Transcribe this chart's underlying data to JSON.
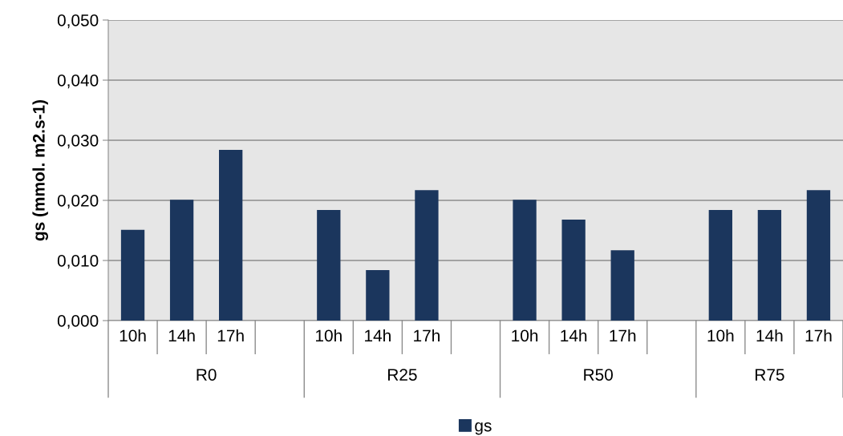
{
  "chart_data": {
    "type": "bar",
    "categories": [
      "10h",
      "14h",
      "17h",
      null,
      "10h",
      "14h",
      "17h",
      null,
      "10h",
      "14h",
      "17h",
      null,
      "10h",
      "14h",
      "17h"
    ],
    "series": [
      {
        "name": "gs",
        "color": "#1b365d",
        "values": [
          0.0151,
          0.0201,
          0.0284,
          null,
          0.0184,
          0.0084,
          0.0217,
          null,
          0.0201,
          0.0168,
          0.0117,
          null,
          0.0184,
          0.0184,
          0.0217
        ]
      }
    ],
    "ylabel": "gs (mmol. m2.s-1)",
    "ylim": [
      0,
      0.05
    ],
    "yticks": [
      {
        "value": 0,
        "label": "0,000"
      },
      {
        "value": 0.01,
        "label": "0,010"
      },
      {
        "value": 0.02,
        "label": "0,020"
      },
      {
        "value": 0.03,
        "label": "0,030"
      },
      {
        "value": 0.04,
        "label": "0,040"
      },
      {
        "value": 0.05,
        "label": "0,050"
      }
    ],
    "annotations": [
      "R0",
      "R25",
      "R50",
      "R75"
    ],
    "grid": "y",
    "legend": "bottom"
  }
}
